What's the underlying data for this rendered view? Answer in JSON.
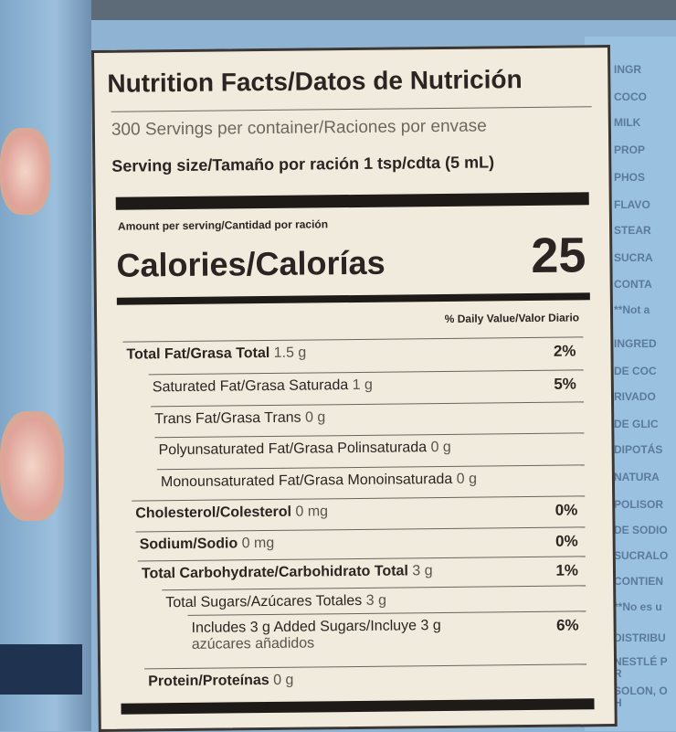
{
  "label": {
    "title": "Nutrition Facts/Datos de Nutrición",
    "servings": "300 Servings per container/Raciones por envase",
    "serving_size": "Serving size/Tamaño por ración 1 tsp/cdta (5 mL)",
    "amount_per_serving": "Amount per serving/Cantidad por ración",
    "calories_label": "Calories/Calorías",
    "calories_value": "25",
    "dv_header": "% Daily Value/Valor Diario",
    "rows": [
      {
        "label": "Total Fat/Grasa Total",
        "amount": "1.5 g",
        "dv": "2%"
      },
      {
        "label": "Saturated Fat/Grasa Saturada",
        "amount": "1 g",
        "dv": "5%"
      },
      {
        "label": "Trans Fat/Grasa Trans",
        "amount": "0 g",
        "dv": ""
      },
      {
        "label": "Polyunsaturated Fat/Grasa Polinsaturada",
        "amount": "0 g",
        "dv": ""
      },
      {
        "label": "Monounsaturated Fat/Grasa Monoinsaturada",
        "amount": "0 g",
        "dv": ""
      },
      {
        "label": "Cholesterol/Colesterol",
        "amount": "0 mg",
        "dv": "0%"
      },
      {
        "label": "Sodium/Sodio",
        "amount": "0 mg",
        "dv": "0%"
      },
      {
        "label": "Total Carbohydrate/Carbohidrato Total",
        "amount": "3 g",
        "dv": "1%"
      },
      {
        "label": "Total Sugars/Azúcares Totales",
        "amount": "3 g",
        "dv": ""
      },
      {
        "label": "Includes 3 g Added Sugars/Incluye 3 g",
        "amount": "azúcares añadidos",
        "dv": "6%"
      },
      {
        "label": "Protein/Proteínas",
        "amount": "0 g",
        "dv": ""
      }
    ]
  },
  "ingredients_side": [
    "INGR",
    "COCO",
    "MILK",
    "PROP",
    "PHOS",
    "FLAVO",
    "STEAR",
    "SUCRA",
    "CONTA",
    "**Not a",
    "INGRED",
    "DE COC",
    "RIVADO",
    "DE GLIC",
    "DIPOTÁS",
    "NATURA",
    "POLISOR",
    "DE SODIO",
    "SUCRALO",
    "CONTIEN",
    "**No es u",
    "DISTRIBU",
    "NESTLÉ PR",
    "SOLON, OH"
  ]
}
